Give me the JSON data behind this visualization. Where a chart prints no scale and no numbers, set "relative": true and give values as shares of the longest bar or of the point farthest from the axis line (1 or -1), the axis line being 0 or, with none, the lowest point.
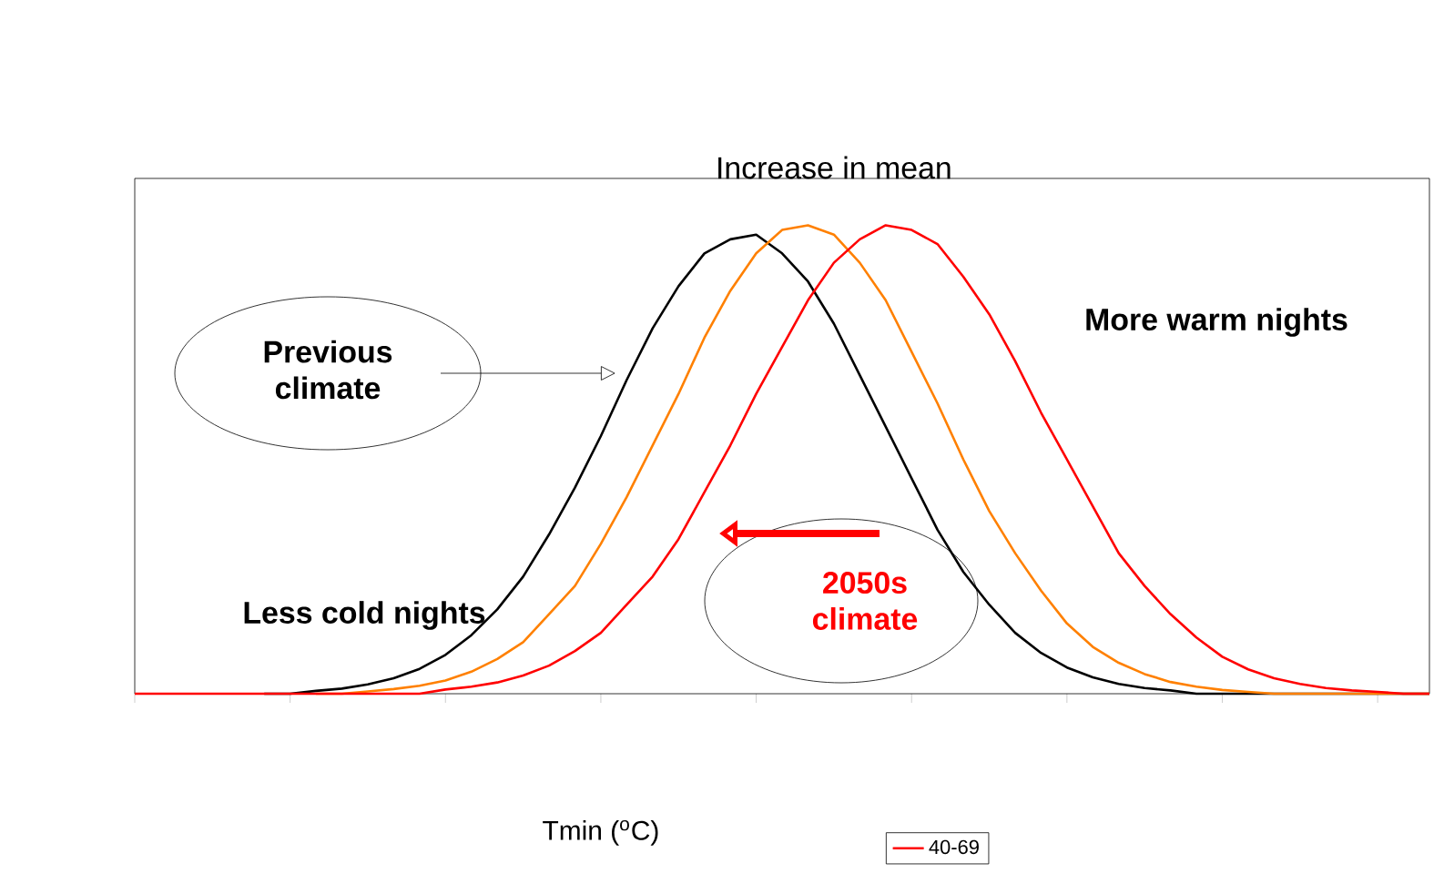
{
  "chart_data": {
    "type": "line",
    "title": "Increase in mean",
    "xlabel": "Tmin ($^{o}$C)",
    "relative": true,
    "legend": "bottom",
    "marker": "none",
    "line_style": "solid",
    "categories": [
      null,
      null,
      null,
      null,
      null,
      null,
      null,
      null,
      null,
      null,
      null,
      null,
      null,
      null,
      null,
      null,
      null,
      null,
      null,
      null,
      null,
      null,
      null,
      null,
      null,
      null,
      null,
      null,
      null,
      null,
      null,
      null,
      null,
      null,
      null,
      null,
      null,
      null,
      null,
      null,
      null,
      null,
      null,
      null,
      null,
      null,
      null,
      null,
      null,
      null,
      null
    ],
    "annotations": [
      "Previous climate",
      "Less cold nights",
      "More warm nights",
      "2050s climate"
    ],
    "series": [
      {
        "color": "#000000",
        "values": [
          null,
          null,
          null,
          null,
          null,
          0,
          0,
          0.006,
          0.011,
          0.02,
          0.033,
          0.053,
          0.083,
          0.125,
          0.18,
          0.25,
          0.34,
          0.44,
          0.55,
          0.67,
          0.78,
          0.87,
          0.94,
          0.97,
          0.98,
          0.94,
          0.88,
          0.79,
          0.68,
          0.57,
          0.46,
          0.35,
          0.26,
          0.19,
          0.13,
          0.087,
          0.056,
          0.035,
          0.021,
          0.012,
          0.007,
          0,
          0,
          0,
          0,
          0,
          0,
          0,
          0,
          0,
          0
        ]
      },
      {
        "color": "#ff8000",
        "values": [
          null,
          null,
          null,
          null,
          null,
          null,
          null,
          0,
          0,
          0.005,
          0.01,
          0.017,
          0.028,
          0.047,
          0.074,
          0.11,
          0.17,
          0.23,
          0.32,
          0.42,
          0.53,
          0.64,
          0.76,
          0.86,
          0.94,
          0.99,
          1.0,
          0.98,
          0.92,
          0.84,
          0.73,
          0.62,
          0.5,
          0.39,
          0.3,
          0.22,
          0.15,
          0.1,
          0.066,
          0.042,
          0.025,
          0.015,
          0.008,
          0.004,
          0,
          0,
          0,
          0,
          0,
          0,
          0
        ]
      },
      {
        "name": "40-69",
        "color": "#ff0000",
        "values": [
          0,
          0,
          0,
          0,
          0,
          0,
          0,
          0,
          0,
          0,
          0,
          0,
          0.009,
          0.015,
          0.024,
          0.039,
          0.06,
          0.091,
          0.13,
          0.19,
          0.25,
          0.33,
          0.43,
          0.53,
          0.64,
          0.74,
          0.84,
          0.92,
          0.97,
          1.0,
          0.99,
          0.96,
          0.89,
          0.81,
          0.71,
          0.6,
          0.5,
          0.4,
          0.3,
          0.23,
          0.17,
          0.12,
          0.079,
          0.052,
          0.033,
          0.021,
          0.012,
          0.007,
          0.004,
          0,
          0
        ]
      }
    ]
  }
}
